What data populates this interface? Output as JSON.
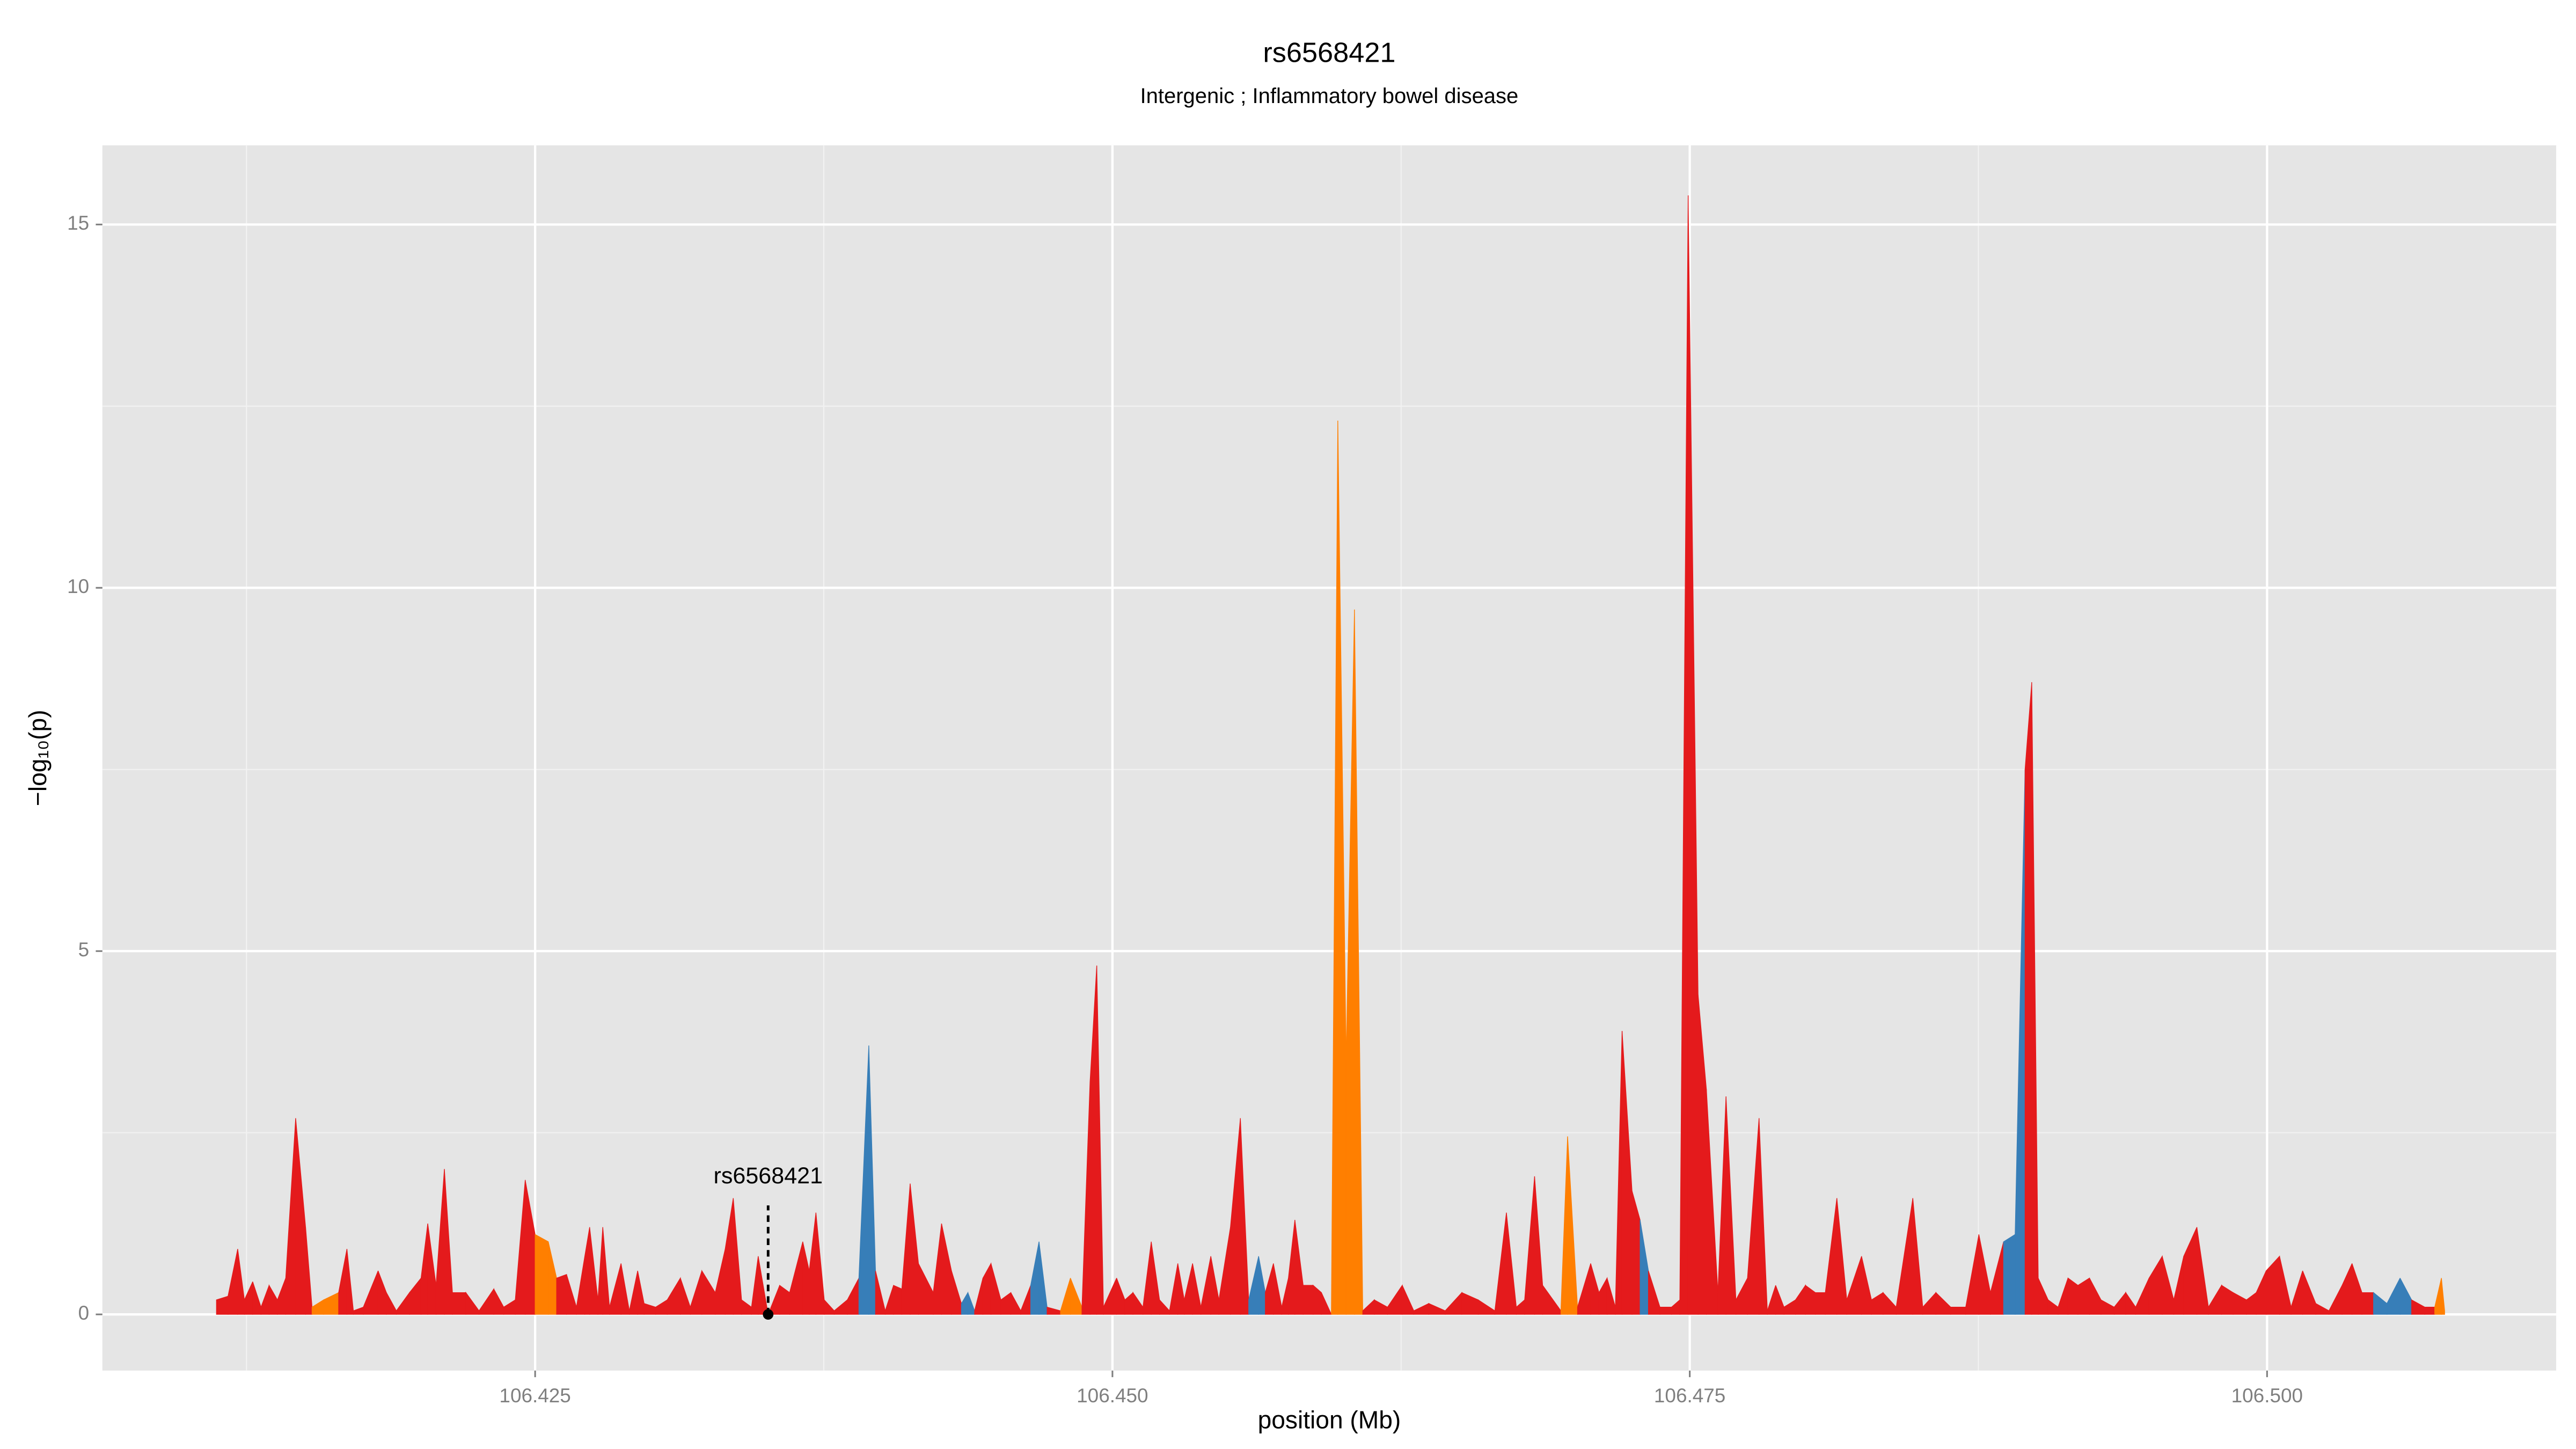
{
  "chart_data": {
    "type": "area",
    "title": "rs6568421",
    "subtitle": "Intergenic ; Inflammatory bowel disease",
    "xlabel": "position (Mb)",
    "ylabel": "−log₁₀(p)",
    "xlim": [
      106.40626,
      106.51252
    ],
    "ylim": [
      -0.773,
      16.09
    ],
    "xticks": [
      106.425,
      {
        "value": 106.45,
        "label": "106.450"
      },
      106.475,
      {
        "value": 106.5,
        "label": "106.500"
      }
    ],
    "yticks": [
      0,
      5,
      10,
      15
    ],
    "x_minor_grid": [
      106.4125,
      106.4375,
      106.4625,
      106.4875
    ],
    "y_minor_grid": [
      2.5,
      7.5,
      12.5
    ],
    "grid": true,
    "palette": [
      "#e41a1c",
      "#ff7f00",
      "#377eb8"
    ],
    "x": [
      106.4112,
      106.4117,
      106.41212,
      106.41241,
      106.41277,
      106.41313,
      106.41348,
      106.41384,
      106.4142,
      106.41463,
      106.41506,
      106.41534,
      106.41584,
      106.41649,
      106.41685,
      106.41713,
      106.41756,
      106.4182,
      106.41856,
      106.41899,
      106.41956,
      106.42006,
      106.42035,
      106.42071,
      106.42107,
      106.42142,
      106.422,
      106.42257,
      106.42321,
      106.42364,
      106.42414,
      106.42457,
      106.425,
      106.42557,
      106.42593,
      106.42636,
      106.42679,
      106.42715,
      106.42736,
      106.42772,
      106.42793,
      106.42822,
      106.42872,
      106.42908,
      106.42944,
      106.42972,
      106.43022,
      106.43072,
      106.43129,
      106.43172,
      106.43222,
      106.4328,
      106.43323,
      106.43358,
      106.43394,
      106.43437,
      106.43466,
      106.43509,
      106.43559,
      106.43602,
      106.43659,
      106.43687,
      106.43716,
      106.43752,
      106.43795,
      106.43852,
      106.43902,
      106.43945,
      106.43974,
      106.44016,
      106.44052,
      106.44088,
      106.44124,
      106.4416,
      106.44224,
      106.4426,
      106.44303,
      106.44346,
      106.44374,
      106.44403,
      106.44439,
      106.44474,
      106.44517,
      106.4456,
      106.44603,
      106.44646,
      106.44682,
      106.44717,
      106.44775,
      106.44818,
      106.44868,
      106.44903,
      106.44932,
      106.44961,
      106.45018,
      106.45054,
      106.45089,
      106.45132,
      106.45168,
      106.45204,
      106.45247,
      106.45283,
      106.45311,
      106.45347,
      106.45383,
      106.45426,
      106.45461,
      106.45511,
      106.45554,
      106.4559,
      106.45633,
      106.45662,
      106.45697,
      106.45733,
      106.45762,
      106.4579,
      106.45826,
      106.45869,
      106.45905,
      106.45948,
      106.45976,
      106.46012,
      106.46048,
      106.46084,
      106.46134,
      106.46191,
      106.46255,
      106.46305,
      106.4637,
      106.46441,
      106.46513,
      106.46584,
      106.46656,
      106.46706,
      106.46749,
      106.46785,
      106.46828,
      106.46863,
      106.46942,
      106.46971,
      106.47014,
      106.47071,
      106.47107,
      106.47142,
      106.47178,
      106.47207,
      106.4725,
      106.47285,
      106.47321,
      106.47371,
      106.47421,
      106.47457,
      106.47493,
      106.47536,
      106.47572,
      106.47622,
      106.47657,
      106.477,
      106.4775,
      106.478,
      106.47836,
      106.47872,
      106.47908,
      106.47958,
      106.48001,
      106.48044,
      106.48087,
      106.48137,
      106.4818,
      106.48244,
      106.48287,
      106.48337,
      106.48394,
      106.48466,
      106.48509,
      106.48566,
      106.4863,
      106.48695,
      106.48752,
      106.48802,
      106.48859,
      106.48909,
      106.48952,
      106.48981,
      106.49009,
      106.49052,
      106.49095,
      106.49138,
      106.49181,
      106.49231,
      106.49281,
      106.49338,
      106.49388,
      106.49431,
      106.49489,
      106.49546,
      106.49596,
      106.49639,
      106.49696,
      106.49746,
      106.49803,
      106.49853,
      106.49911,
      106.49953,
      106.49996,
      106.50054,
      106.50104,
      106.50154,
      106.50211,
      106.50268,
      106.50325,
      106.50368,
      106.50411,
      106.50461,
      106.50519,
      106.50576,
      106.50626,
      106.50683,
      106.50726,
      106.50755,
      106.50769
    ],
    "values": [
      0.2,
      0.25,
      0.9,
      0.2,
      0.45,
      0.1,
      0.4,
      0.2,
      0.5,
      2.7,
      1.2,
      0.1,
      0.2,
      0.3,
      0.9,
      0.05,
      0.1,
      0.6,
      0.3,
      0.05,
      0.3,
      0.5,
      1.25,
      0.4,
      2.0,
      0.3,
      0.3,
      0.05,
      0.35,
      0.1,
      0.2,
      1.85,
      1.1,
      1.0,
      0.5,
      0.55,
      0.1,
      0.8,
      1.2,
      0.2,
      1.2,
      0.1,
      0.7,
      0.05,
      0.6,
      0.15,
      0.1,
      0.2,
      0.5,
      0.1,
      0.6,
      0.3,
      0.9,
      1.6,
      0.2,
      0.1,
      0.8,
      0,
      0.4,
      0.3,
      1.0,
      0.6,
      1.4,
      0.2,
      0.05,
      0.2,
      0.5,
      3.7,
      0.6,
      0.05,
      0.4,
      0.35,
      1.8,
      0.7,
      0.3,
      1.25,
      0.6,
      0.15,
      0.3,
      0.05,
      0.5,
      0.7,
      0.2,
      0.3,
      0.05,
      0.4,
      1.0,
      0.1,
      0.05,
      0.5,
      0.1,
      3.2,
      4.8,
      0.1,
      0.5,
      0.2,
      0.3,
      0.1,
      1.0,
      0.2,
      0.05,
      0.7,
      0.2,
      0.7,
      0.1,
      0.8,
      0.2,
      1.2,
      2.7,
      0.2,
      0.8,
      0.3,
      0.7,
      0.1,
      0.5,
      1.3,
      0.4,
      0.4,
      0.3,
      0,
      12.3,
      3.5,
      9.7,
      0.05,
      0.2,
      0.1,
      0.4,
      0.05,
      0.15,
      0.05,
      0.3,
      0.2,
      0.05,
      1.4,
      0.1,
      0.2,
      1.9,
      0.4,
      0.05,
      2.45,
      0.1,
      0.7,
      0.3,
      0.5,
      0.1,
      3.9,
      1.7,
      1.3,
      0.6,
      0.1,
      0.1,
      0.2,
      15.4,
      4.4,
      3.1,
      0.3,
      3.0,
      0.2,
      0.5,
      2.7,
      0.05,
      0.4,
      0.1,
      0.2,
      0.4,
      0.3,
      0.3,
      1.6,
      0.2,
      0.8,
      0.2,
      0.3,
      0.1,
      1.6,
      0.1,
      0.3,
      0.1,
      0.1,
      1.1,
      0.3,
      1.0,
      1.1,
      7.5,
      8.7,
      0.5,
      0.2,
      0.1,
      0.5,
      0.4,
      0.5,
      0.2,
      0.1,
      0.3,
      0.1,
      0.5,
      0.8,
      0.2,
      0.8,
      1.2,
      0.1,
      0.4,
      0.3,
      0.2,
      0.3,
      0.6,
      0.8,
      0.1,
      0.6,
      0.15,
      0.05,
      0.4,
      0.7,
      0.3,
      0.3,
      0.15,
      0.5,
      0.2,
      0.1,
      0.1,
      0.5,
      0.05
    ],
    "groups": [
      0,
      0,
      0,
      0,
      0,
      0,
      0,
      0,
      0,
      0,
      0,
      0,
      1,
      1,
      0,
      0,
      0,
      0,
      0,
      0,
      0,
      0,
      0,
      2,
      0,
      0,
      0,
      0,
      0,
      0,
      0,
      0,
      1,
      1,
      0,
      0,
      0,
      0,
      0,
      0,
      0,
      2,
      0,
      0,
      0,
      0,
      0,
      0,
      0,
      0,
      0,
      1,
      0,
      0,
      0,
      0,
      0,
      0,
      0,
      0,
      0,
      0,
      0,
      0,
      1,
      0,
      0,
      2,
      0,
      1,
      0,
      0,
      0,
      0,
      0,
      0,
      0,
      0,
      2,
      0,
      0,
      0,
      0,
      0,
      0,
      0,
      2,
      0,
      0,
      1,
      0,
      0,
      0,
      0,
      0,
      0,
      0,
      0,
      0,
      0,
      0,
      0,
      0,
      0,
      0,
      0,
      0,
      0,
      0,
      0,
      2,
      0,
      0,
      0,
      0,
      0,
      0,
      0,
      0,
      0,
      1,
      1,
      1,
      0,
      0,
      0,
      0,
      0,
      0,
      0,
      0,
      0,
      2,
      0,
      0,
      0,
      0,
      0,
      1,
      1,
      0,
      0,
      0,
      0,
      0,
      0,
      0,
      2,
      0,
      0,
      1,
      0,
      0,
      0,
      0,
      0,
      0,
      0,
      0,
      0,
      0,
      0,
      0,
      0,
      0,
      0,
      0,
      0,
      0,
      0,
      0,
      0,
      0,
      0,
      0,
      0,
      0,
      2,
      0,
      0,
      0,
      2,
      2,
      0,
      0,
      0,
      1,
      0,
      1,
      0,
      0,
      0,
      0,
      0,
      0,
      0,
      0,
      0,
      0,
      2,
      0,
      0,
      0,
      0,
      0,
      0,
      0,
      0,
      0,
      0,
      0,
      0,
      0,
      2,
      2,
      2,
      0,
      0,
      0,
      1,
      0,
      0,
      0
    ],
    "annotation": {
      "label": "rs6568421",
      "x": 106.43509,
      "y": 0
    }
  }
}
